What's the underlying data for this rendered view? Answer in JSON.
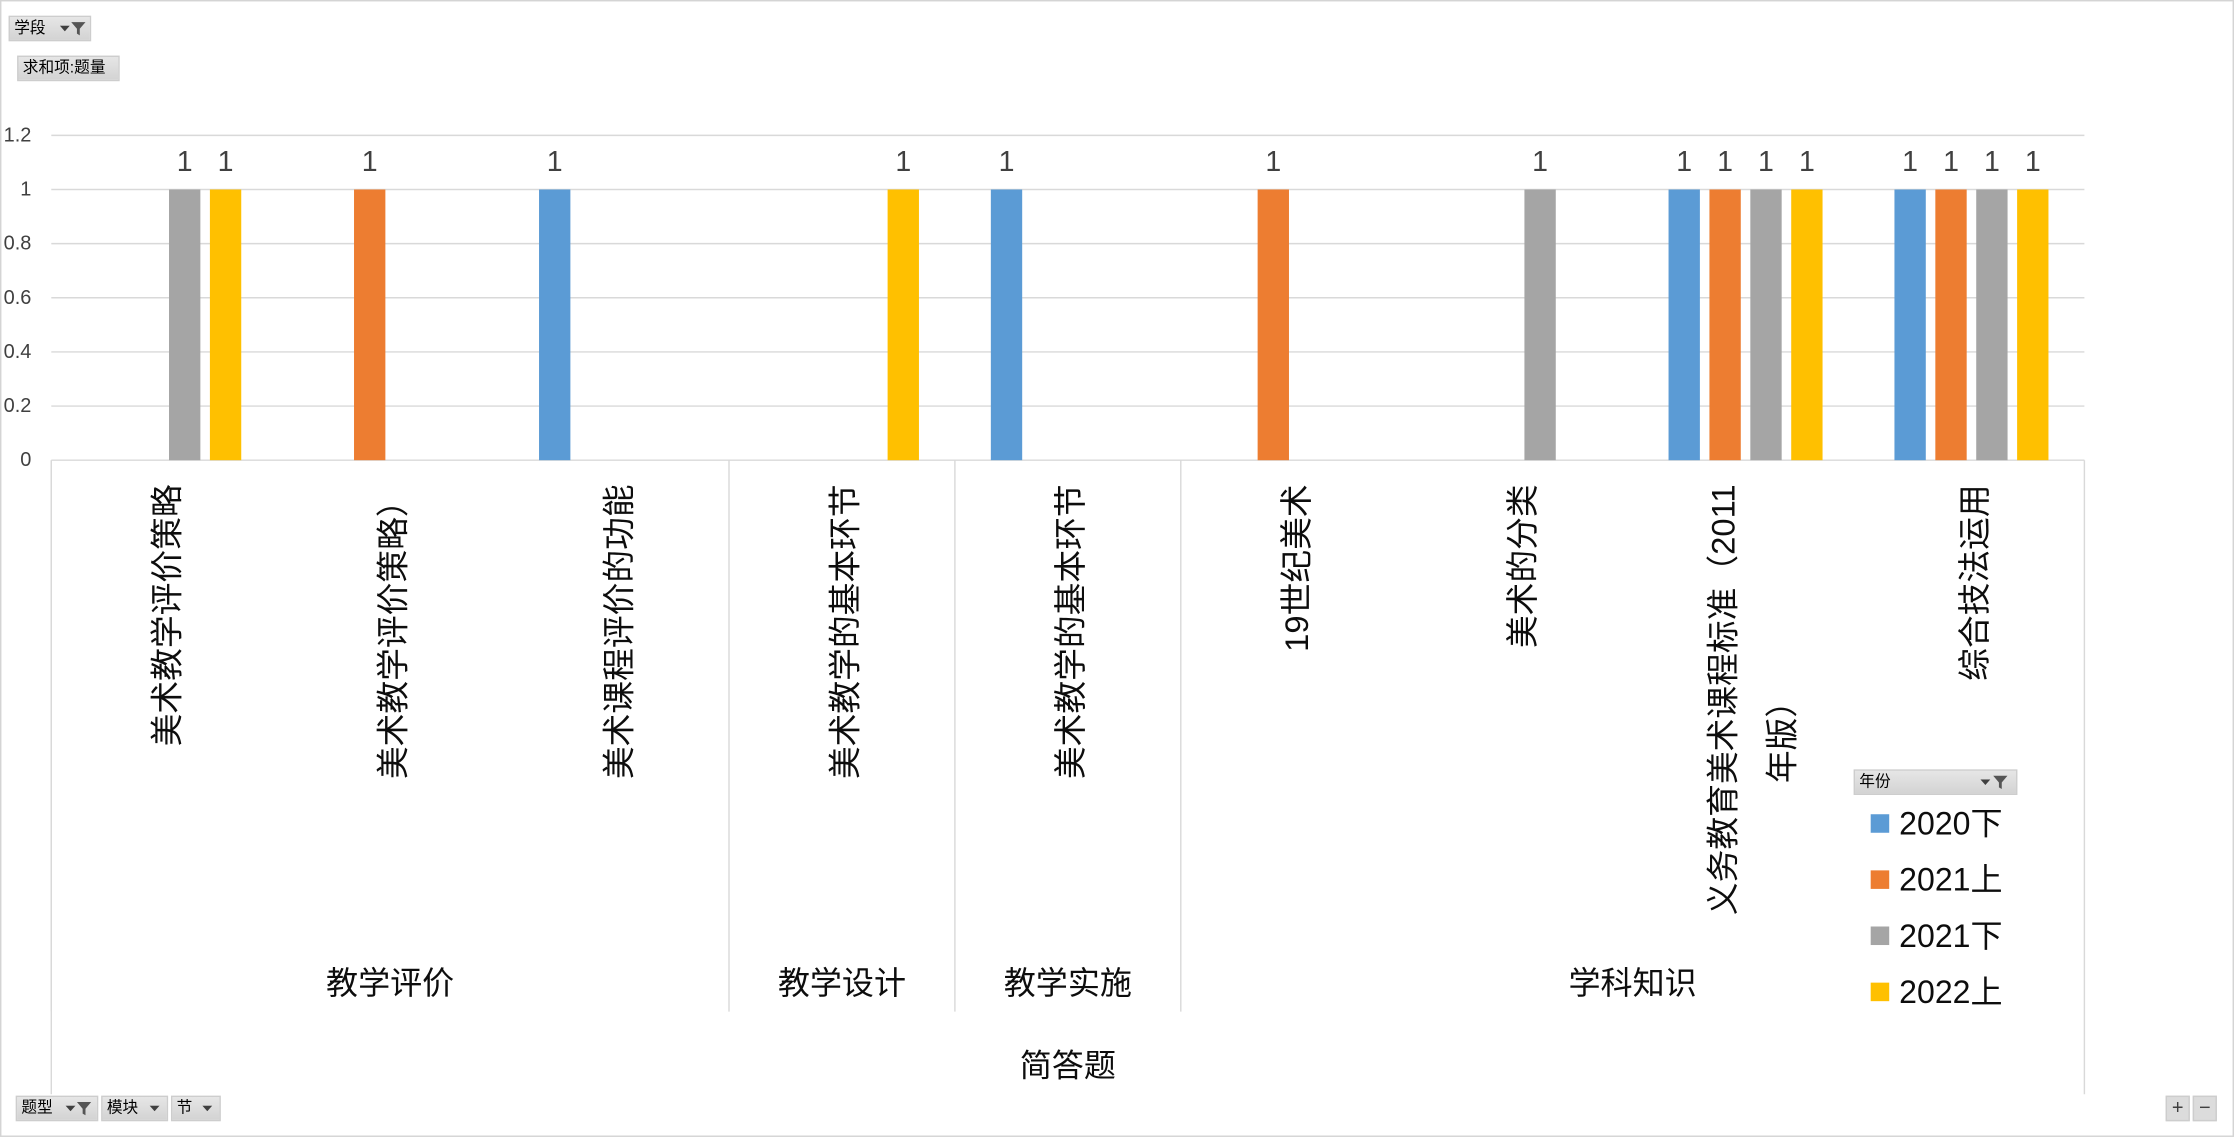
{
  "report_filter": {
    "label": "学段",
    "icons": [
      "dropdown-arrow-icon",
      "filter-funnel-icon"
    ]
  },
  "value_field": {
    "label": "求和项:题量"
  },
  "axis_fields": [
    {
      "label": "题型",
      "icons": [
        "dropdown-arrow-icon",
        "filter-funnel-icon"
      ]
    },
    {
      "label": "模块",
      "icons": [
        "dropdown-arrow-icon"
      ]
    },
    {
      "label": "节",
      "icons": [
        "dropdown-arrow-icon"
      ]
    }
  ],
  "legend_field": {
    "label": "年份",
    "icons": [
      "dropdown-arrow-icon",
      "filter-funnel-icon"
    ]
  },
  "field_controls": {
    "expand": "+",
    "collapse": "−"
  },
  "colors": {
    "field_button": "#d9d9d9",
    "gridline": "#d9d9d9",
    "text": "#0d0d0d"
  },
  "chart_data": {
    "type": "bar",
    "categories": [
      "美术教学评价策略",
      "美术教学评价策略）",
      "美术课程评价的功能",
      "美术教学的基本环节",
      "美术教学的基本环节",
      "19世纪美术",
      "美术的分类",
      "义务教育美术课程标准（2011年版）",
      "综合技法运用"
    ],
    "category_groups": [
      {
        "label": "教学评价",
        "count": 3
      },
      {
        "label": "教学设计",
        "count": 1
      },
      {
        "label": "教学实施",
        "count": 1
      },
      {
        "label": "学科知识",
        "count": 4
      }
    ],
    "category_supergroups": [
      {
        "label": "简答题",
        "count": 9
      }
    ],
    "series": [
      {
        "name": "2020下",
        "color": "#5b9bd5",
        "values": [
          null,
          null,
          1,
          null,
          1,
          null,
          null,
          1,
          1
        ]
      },
      {
        "name": "2021上",
        "color": "#ed7d31",
        "values": [
          null,
          1,
          null,
          null,
          null,
          1,
          null,
          1,
          1
        ]
      },
      {
        "name": "2021下",
        "color": "#a5a5a5",
        "values": [
          1,
          null,
          null,
          null,
          null,
          null,
          1,
          1,
          1
        ]
      },
      {
        "name": "2022上",
        "color": "#ffc000",
        "values": [
          1,
          null,
          null,
          1,
          null,
          null,
          null,
          1,
          1
        ]
      }
    ],
    "ylim": [
      0,
      1.2
    ],
    "y_ticks": [
      0,
      0.2,
      0.4,
      0.6,
      0.8,
      1,
      1.2
    ],
    "data_labels": true,
    "grid": true,
    "legend_position": "right"
  }
}
